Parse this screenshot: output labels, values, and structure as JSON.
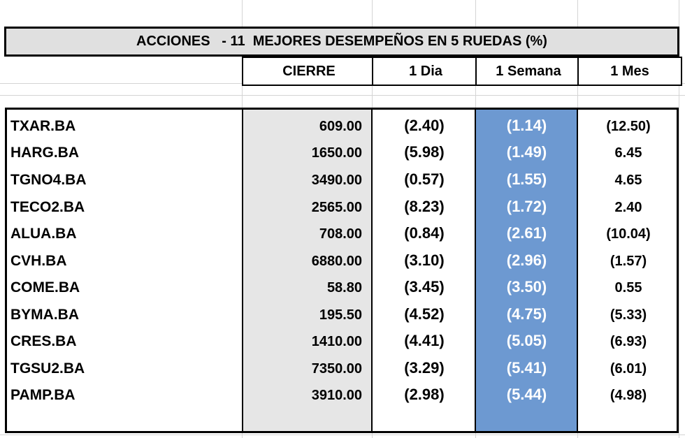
{
  "table": {
    "title": "ACCIONES   - 11  MEJORES DESEMPEÑOS EN 5 RUEDAS (%)",
    "columns": [
      "CIERRE",
      "1 Dia",
      "1 Semana",
      "1 Mes"
    ],
    "rows": [
      {
        "ticker": "TXAR.BA",
        "cierre": "609.00",
        "dia": "(2.40)",
        "semana": "(1.14)",
        "mes": "(12.50)"
      },
      {
        "ticker": "HARG.BA",
        "cierre": "1650.00",
        "dia": "(5.98)",
        "semana": "(1.49)",
        "mes": "6.45"
      },
      {
        "ticker": "TGNO4.BA",
        "cierre": "3490.00",
        "dia": "(0.57)",
        "semana": "(1.55)",
        "mes": "4.65"
      },
      {
        "ticker": "TECO2.BA",
        "cierre": "2565.00",
        "dia": "(8.23)",
        "semana": "(1.72)",
        "mes": "2.40"
      },
      {
        "ticker": "ALUA.BA",
        "cierre": "708.00",
        "dia": "(0.84)",
        "semana": "(2.61)",
        "mes": "(10.04)"
      },
      {
        "ticker": "CVH.BA",
        "cierre": "6880.00",
        "dia": "(3.10)",
        "semana": "(2.96)",
        "mes": "(1.57)"
      },
      {
        "ticker": "COME.BA",
        "cierre": "58.80",
        "dia": "(3.45)",
        "semana": "(3.50)",
        "mes": "0.55"
      },
      {
        "ticker": "BYMA.BA",
        "cierre": "195.50",
        "dia": "(4.52)",
        "semana": "(4.75)",
        "mes": "(5.33)"
      },
      {
        "ticker": "CRES.BA",
        "cierre": "1410.00",
        "dia": "(4.41)",
        "semana": "(5.05)",
        "mes": "(6.93)"
      },
      {
        "ticker": "TGSU2.BA",
        "cierre": "7350.00",
        "dia": "(3.29)",
        "semana": "(5.41)",
        "mes": "(6.01)"
      },
      {
        "ticker": "PAMP.BA",
        "cierre": "3910.00",
        "dia": "(2.98)",
        "semana": "(5.44)",
        "mes": "(4.98)"
      }
    ]
  },
  "colors": {
    "title_bg": "#e0e0e0",
    "gray_column": "#e6e6e6",
    "week_column": "#6d99d1",
    "week_text": "#ffffff",
    "border": "#000000"
  }
}
